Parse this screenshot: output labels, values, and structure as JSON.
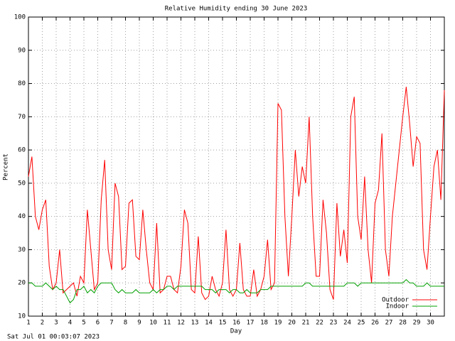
{
  "chart_data": {
    "type": "line",
    "title": "Relative Humidity ending 30 June 2023",
    "x_label": "Day",
    "y_label": "Percent",
    "footer": "Sat Jul 01 00:03:07 2023",
    "x": [
      1,
      1.25,
      1.5,
      1.75,
      2,
      2.25,
      2.5,
      2.75,
      3,
      3.25,
      3.5,
      3.75,
      4,
      4.25,
      4.5,
      4.75,
      5,
      5.25,
      5.5,
      5.75,
      6,
      6.25,
      6.5,
      6.75,
      7,
      7.25,
      7.5,
      7.75,
      8,
      8.25,
      8.5,
      8.75,
      9,
      9.25,
      9.5,
      9.75,
      10,
      10.25,
      10.5,
      10.75,
      11,
      11.25,
      11.5,
      11.75,
      12,
      12.25,
      12.5,
      12.75,
      13,
      13.25,
      13.5,
      13.75,
      14,
      14.25,
      14.5,
      14.75,
      15,
      15.25,
      15.5,
      15.75,
      16,
      16.25,
      16.5,
      16.75,
      17,
      17.25,
      17.5,
      17.75,
      18,
      18.25,
      18.5,
      18.75,
      19,
      19.25,
      19.5,
      19.75,
      20,
      20.25,
      20.5,
      20.75,
      21,
      21.25,
      21.5,
      21.75,
      22,
      22.25,
      22.5,
      22.75,
      23,
      23.25,
      23.5,
      23.75,
      24,
      24.25,
      24.5,
      24.75,
      25,
      25.25,
      25.5,
      25.75,
      26,
      26.25,
      26.5,
      26.75,
      27,
      27.25,
      27.5,
      27.75,
      28,
      28.25,
      28.5,
      28.75,
      29,
      29.25,
      29.5,
      29.75,
      30,
      30.25,
      30.5,
      30.75,
      31
    ],
    "series": [
      {
        "name": "Outdoor",
        "color": "#ff0000",
        "values": [
          52,
          58,
          40,
          36,
          42,
          45,
          25,
          18,
          20,
          30,
          17,
          18,
          19,
          20,
          16,
          22,
          20,
          42,
          30,
          18,
          20,
          45,
          57,
          30,
          24,
          50,
          46,
          24,
          25,
          44,
          45,
          28,
          27,
          42,
          30,
          20,
          18,
          38,
          17,
          18,
          22,
          22,
          18,
          17,
          25,
          42,
          38,
          18,
          17,
          34,
          17,
          15,
          16,
          22,
          18,
          16,
          20,
          36,
          18,
          16,
          18,
          32,
          18,
          16,
          16,
          24,
          16,
          18,
          22,
          33,
          18,
          20,
          74,
          72,
          40,
          22,
          40,
          60,
          46,
          55,
          50,
          70,
          40,
          22,
          22,
          45,
          35,
          18,
          15,
          44,
          28,
          36,
          26,
          70,
          76,
          40,
          33,
          52,
          30,
          20,
          44,
          48,
          65,
          30,
          22,
          40,
          50,
          60,
          70,
          79,
          68,
          55,
          64,
          62,
          30,
          24,
          40,
          55,
          60,
          45,
          78
        ]
      },
      {
        "name": "Indoor",
        "color": "#00a000",
        "values": [
          20,
          20,
          19,
          19,
          19,
          20,
          19,
          18,
          19,
          18,
          18,
          16,
          14,
          15,
          18,
          18,
          19,
          17,
          18,
          17,
          19,
          20,
          20,
          20,
          20,
          18,
          17,
          18,
          17,
          17,
          17,
          18,
          17,
          17,
          17,
          17,
          18,
          17,
          18,
          18,
          19,
          19,
          18,
          19,
          19,
          19,
          19,
          19,
          19,
          19,
          19,
          18,
          18,
          18,
          17,
          18,
          18,
          18,
          17,
          18,
          18,
          17,
          17,
          18,
          17,
          17,
          17,
          18,
          18,
          18,
          19,
          19,
          19,
          19,
          19,
          19,
          19,
          19,
          19,
          19,
          20,
          20,
          19,
          19,
          19,
          19,
          19,
          19,
          19,
          19,
          19,
          19,
          20,
          20,
          20,
          19,
          20,
          20,
          20,
          20,
          20,
          20,
          20,
          20,
          20,
          20,
          20,
          20,
          20,
          21,
          20,
          20,
          19,
          19,
          19,
          20,
          19,
          19,
          19,
          19,
          19
        ]
      }
    ],
    "xlim": [
      1,
      31
    ],
    "ylim": [
      10,
      100
    ],
    "xticks": [
      1,
      2,
      3,
      4,
      5,
      6,
      7,
      8,
      9,
      10,
      11,
      12,
      13,
      14,
      15,
      16,
      17,
      18,
      19,
      20,
      21,
      22,
      23,
      24,
      25,
      26,
      27,
      28,
      29,
      30
    ],
    "yticks": [
      10,
      20,
      30,
      40,
      50,
      60,
      70,
      80,
      90,
      100
    ],
    "grid": true,
    "legend": "bottom-right"
  }
}
